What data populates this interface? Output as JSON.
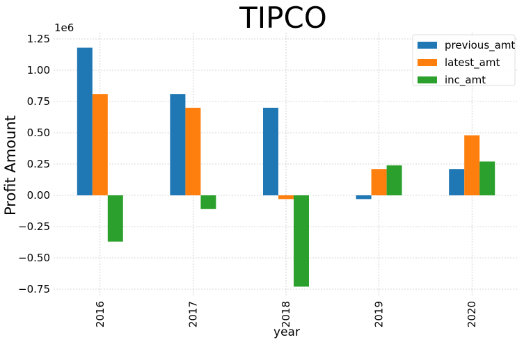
{
  "chart_data": {
    "type": "bar",
    "title": "TIPCO",
    "xlabel": "year",
    "ylabel": "Profit Amount",
    "y_offset_label": "1e6",
    "categories": [
      "2016",
      "2017",
      "2018",
      "2019",
      "2020"
    ],
    "series": [
      {
        "name": "previous_amt",
        "color": "#1f77b4",
        "values": [
          1.18,
          0.81,
          0.7,
          -0.03,
          0.21
        ]
      },
      {
        "name": "latest_amt",
        "color": "#ff7f0e",
        "values": [
          0.81,
          0.7,
          -0.03,
          0.21,
          0.48
        ]
      },
      {
        "name": "inc_amt",
        "color": "#2ca02c",
        "values": [
          -0.37,
          -0.11,
          -0.73,
          0.24,
          0.27
        ]
      }
    ],
    "ylim": [
      -0.8,
      1.3
    ],
    "yticks": [
      -0.75,
      -0.5,
      -0.25,
      0.0,
      0.25,
      0.5,
      0.75,
      1.0,
      1.25
    ],
    "ytick_labels": [
      "−0.75",
      "−0.50",
      "−0.25",
      "0.00",
      "0.25",
      "0.50",
      "0.75",
      "1.00",
      "1.25"
    ],
    "grid": true,
    "legend_position": "top-right"
  }
}
